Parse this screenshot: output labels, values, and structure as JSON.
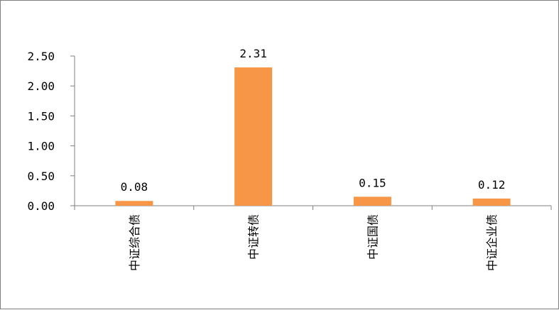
{
  "chart_data": {
    "type": "bar",
    "categories": [
      "中证综合债",
      "中证转债",
      "中证国债",
      "中证企业债"
    ],
    "values": [
      0.08,
      2.31,
      0.15,
      0.12
    ],
    "data_labels": [
      "0.08",
      "2.31",
      "0.15",
      "0.12"
    ],
    "yticks": [
      "0.00",
      "0.50",
      "1.00",
      "1.50",
      "2.00",
      "2.50"
    ],
    "ylim": [
      0,
      2.5
    ],
    "grid": false,
    "legend": "none",
    "title": "",
    "xlabel": "",
    "ylabel": "",
    "colors": {
      "bar": "#F79646",
      "axis": "#808080",
      "border": "#7f7f7f"
    }
  }
}
